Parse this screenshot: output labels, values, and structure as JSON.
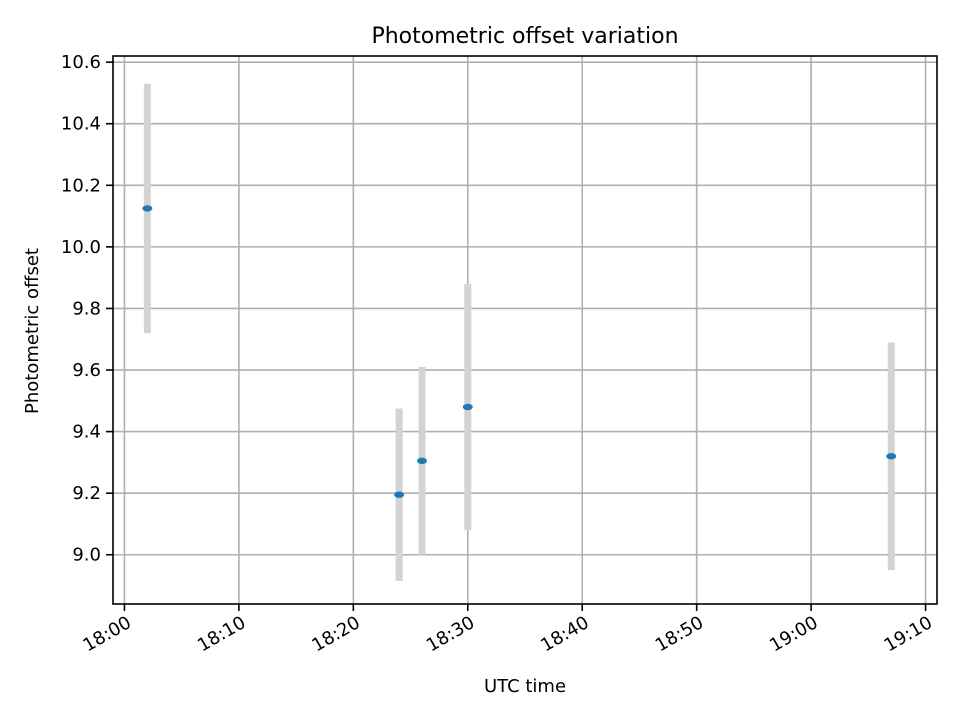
{
  "chart_data": {
    "type": "scatter",
    "title": "Photometric offset variation",
    "xlabel": "UTC time",
    "ylabel": "Photometric offset",
    "x_ticks": [
      "18:00",
      "18:10",
      "18:20",
      "18:30",
      "18:40",
      "18:50",
      "19:00",
      "19:10"
    ],
    "y_ticks": [
      "9.0",
      "9.2",
      "9.4",
      "9.6",
      "9.8",
      "10.0",
      "10.2",
      "10.4",
      "10.6"
    ],
    "xlim": [
      "17:59",
      "19:11"
    ],
    "ylim": [
      8.84,
      10.62
    ],
    "grid": true,
    "marker_color": "#1f77b4",
    "errorbar_color": "#d3d3d3",
    "points": [
      {
        "time": "18:02",
        "value": 10.125,
        "error": 0.405
      },
      {
        "time": "18:24",
        "value": 9.195,
        "error": 0.28
      },
      {
        "time": "18:26",
        "value": 9.305,
        "error": 0.305
      },
      {
        "time": "18:30",
        "value": 9.48,
        "error": 0.4
      },
      {
        "time": "19:07",
        "value": 9.32,
        "error": 0.37
      }
    ]
  }
}
